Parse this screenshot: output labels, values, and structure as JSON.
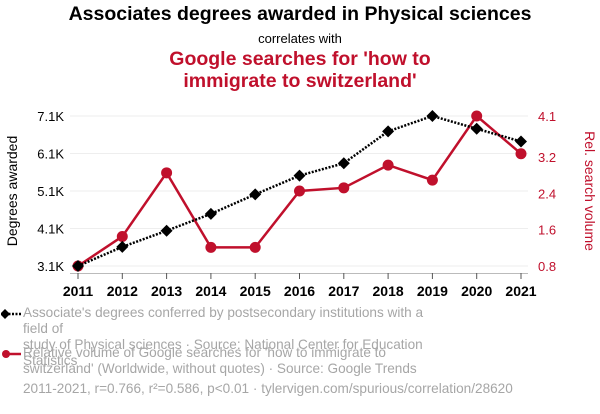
{
  "header": {
    "title": "Associates degrees awarded in Physical sciences",
    "subtitle": "correlates with",
    "title2_line1": "Google searches for 'how to",
    "title2_line2": "immigrate to switzerland'"
  },
  "colors": {
    "series1": "#000000",
    "series2": "#c0102c",
    "grid": "#eeeeee",
    "legend_text": "#a6a6a6"
  },
  "chart_data": {
    "type": "line",
    "x": [
      2011,
      2012,
      2013,
      2014,
      2015,
      2016,
      2017,
      2018,
      2019,
      2020,
      2021
    ],
    "x_tick_labels": [
      "2011",
      "2012",
      "2013",
      "2014",
      "2015",
      "2016",
      "2017",
      "2018",
      "2019",
      "2020",
      "2021"
    ],
    "series": [
      {
        "name": "Associate's degrees conferred by postsecondary institutions with a field of study of Physical sciences",
        "axis": "left",
        "style": "dotted",
        "marker": "diamond",
        "values": [
          3.1,
          3.61,
          4.04,
          4.49,
          5.01,
          5.51,
          5.84,
          6.69,
          7.1,
          6.76,
          6.42
        ],
        "unit": "K"
      },
      {
        "name": "Relative volume of Google searches for 'how to immigrate to switzerland' (Worldwide, without quotes)",
        "axis": "right",
        "style": "solid",
        "marker": "circle",
        "values": [
          0.8,
          1.45,
          2.85,
          1.21,
          1.21,
          2.45,
          2.52,
          3.02,
          2.69,
          4.1,
          3.27
        ]
      }
    ],
    "left_axis": {
      "label": "Degrees awarded",
      "ticks": [
        3.1,
        4.1,
        5.1,
        6.1,
        7.1
      ],
      "tick_labels": [
        "3.1K",
        "4.1K",
        "5.1K",
        "6.1K",
        "7.1K"
      ],
      "ylim": [
        3.1,
        7.1
      ]
    },
    "right_axis": {
      "label": "Rel. search volume",
      "ticks": [
        0.8,
        1.6,
        2.4,
        3.2,
        4.1
      ],
      "tick_labels": [
        "0.8",
        "1.6",
        "2.4",
        "3.2",
        "4.1"
      ],
      "ylim": [
        0.8,
        4.1
      ]
    },
    "grid": true
  },
  "legend": {
    "item1_line1": "Associate's degrees conferred by postsecondary institutions with a field of",
    "item1_line2": "study of Physical sciences · Source: National Center for Education Statistics",
    "item2_line1": "Relative volume of Google searches for 'how to immigrate to",
    "item2_line2": "switzerland' (Worldwide, without quotes) · Source: Google Trends"
  },
  "footer": {
    "text": "2011-2021, r=0.766, r²=0.586, p<0.01 · tylervigen.com/spurious/correlation/28620"
  }
}
